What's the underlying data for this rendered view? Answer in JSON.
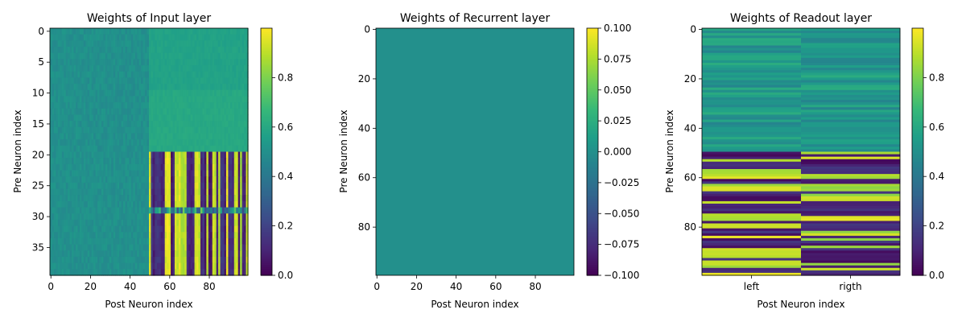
{
  "chart_data": [
    {
      "type": "heatmap",
      "title": "Weights of Input layer",
      "xlabel": "Post Neuron index",
      "ylabel": "Pre Neuron index",
      "rows": 40,
      "cols": 100,
      "xticks": [
        0,
        20,
        40,
        60,
        80
      ],
      "yticks": [
        0,
        5,
        10,
        15,
        20,
        25,
        30,
        35
      ],
      "clim": [
        0,
        1
      ],
      "colorbar_ticks": [
        "0.0",
        "0.2",
        "0.4",
        "0.6",
        "0.8"
      ],
      "colorbar_tick_values": [
        0,
        0.2,
        0.4,
        0.6,
        0.8
      ],
      "colormap": "viridis",
      "pattern": {
        "cols_0_49": "noise around 0.50",
        "cols_50_99_rows_0_9": 0.57,
        "cols_50_99_rows_10_19": 0.6,
        "cols_50_99_rows_20_39": "column stripes alternating between ~0.05 and ~0.95"
      }
    },
    {
      "type": "heatmap",
      "title": "Weights of Recurrent layer",
      "xlabel": "Post Neuron index",
      "ylabel": "Pre Neuron index",
      "rows": 100,
      "cols": 100,
      "xticks": [
        0,
        20,
        40,
        60,
        80
      ],
      "yticks": [
        0,
        20,
        40,
        60,
        80
      ],
      "clim": [
        -0.1,
        0.1
      ],
      "colorbar_ticks": [
        "0.100",
        "0.075",
        "0.050",
        "0.025",
        "0.000",
        "−0.025",
        "−0.050",
        "−0.075",
        "−0.100"
      ],
      "colorbar_tick_values": [
        0.1,
        0.075,
        0.05,
        0.025,
        0,
        -0.025,
        -0.05,
        -0.075,
        -0.1
      ],
      "colormap": "viridis",
      "value": 0.0
    },
    {
      "type": "heatmap",
      "title": "Weights of Readout layer",
      "xlabel": "Post Neuron index",
      "ylabel": "Pre Neuron index",
      "rows": 100,
      "cols": 2,
      "xticklabels": [
        "left",
        "rigth"
      ],
      "yticks": [
        0,
        20,
        40,
        60,
        80
      ],
      "clim": [
        0,
        1
      ],
      "colorbar_ticks": [
        "0.0",
        "0.2",
        "0.4",
        "0.6",
        "0.8"
      ],
      "colorbar_tick_values": [
        0,
        0.2,
        0.4,
        0.6,
        0.8
      ],
      "colormap": "viridis",
      "pattern": {
        "rows_0_49": "values around 0.45-0.62",
        "rows_50_99": "values near 0 or near 1"
      }
    }
  ]
}
